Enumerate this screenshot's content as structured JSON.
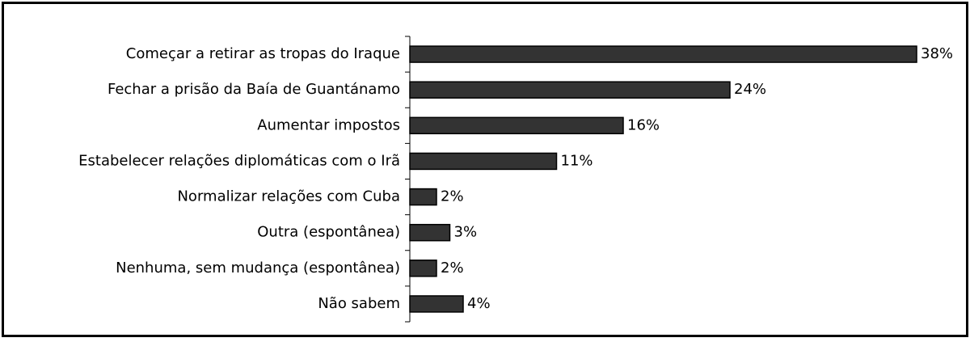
{
  "chart_data": {
    "type": "bar",
    "categories": [
      "Começar a retirar as tropas do Iraque",
      "Fechar a prisão da Baía de Guantánamo",
      "Aumentar impostos",
      "Estabelecer relações diplomáticas com o Irã",
      "Normalizar relações com Cuba",
      "Outra (espontânea)",
      "Nenhuma, sem mudança (espontânea)",
      "Não sabem"
    ],
    "values": [
      38,
      24,
      16,
      11,
      2,
      3,
      2,
      4
    ],
    "value_labels": [
      "38%",
      "24%",
      "16%",
      "11%",
      "2%",
      "3%",
      "2%",
      "4%"
    ],
    "color": "#333333",
    "xlim": [
      0,
      40
    ]
  }
}
